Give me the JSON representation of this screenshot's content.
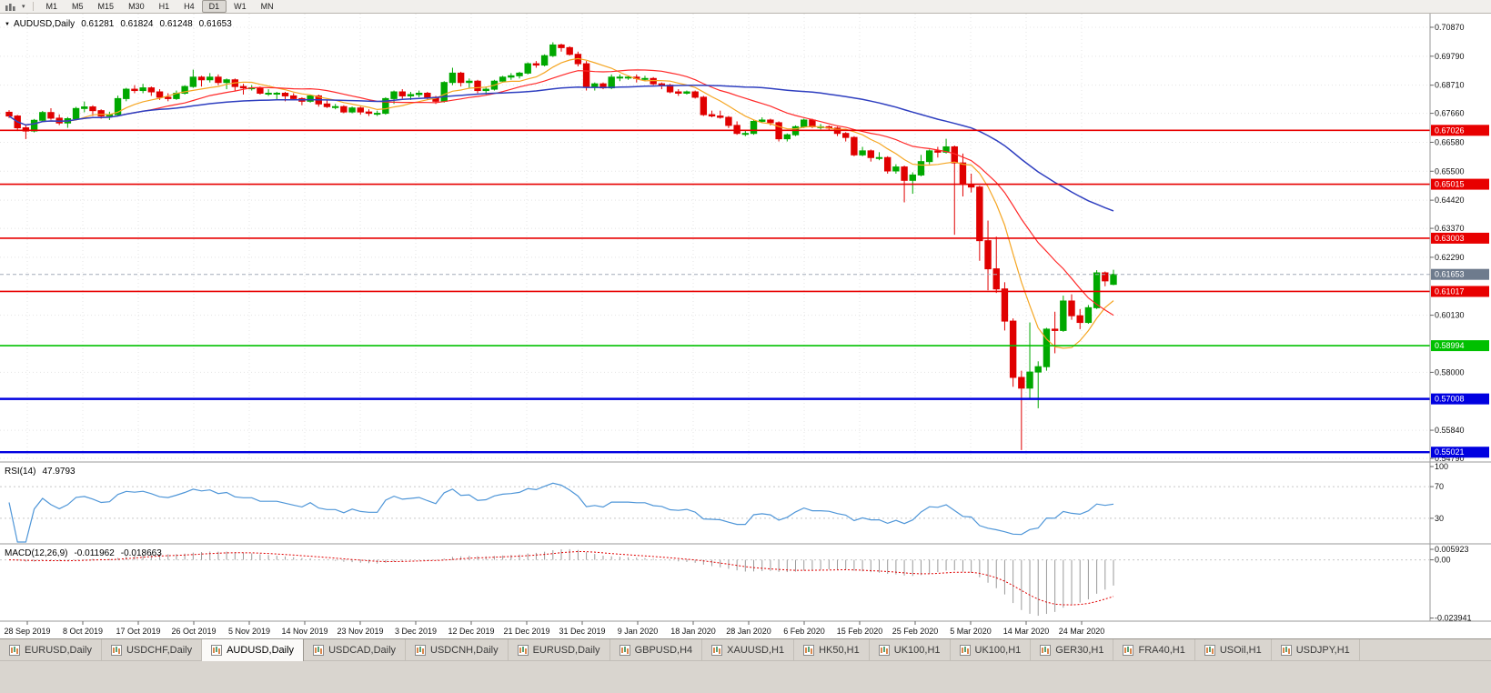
{
  "toolbar": {
    "icons": [
      "candlestick-chart-icon",
      "chart-dropdown-icon"
    ],
    "timeframes": [
      {
        "label": "M1",
        "active": false
      },
      {
        "label": "M5",
        "active": false
      },
      {
        "label": "M15",
        "active": false
      },
      {
        "label": "M30",
        "active": false
      },
      {
        "label": "H1",
        "active": false
      },
      {
        "label": "H4",
        "active": false
      },
      {
        "label": "D1",
        "active": true
      },
      {
        "label": "W1",
        "active": false
      },
      {
        "label": "MN",
        "active": false
      }
    ]
  },
  "chart_data": {
    "type": "candlestick",
    "symbol": "AUDUSD,Daily",
    "ohlc": {
      "open": "0.61281",
      "high": "0.61824",
      "low": "0.61248",
      "close": "0.61653"
    },
    "bid": 0.61653,
    "bid_label": "0.61653",
    "ylim": [
      0.54689,
      0.71378
    ],
    "price_axis_labels": [
      "0.70870",
      "0.69790",
      "0.68710",
      "0.67660",
      "0.66580",
      "0.65500",
      "0.64420",
      "0.63370",
      "0.62290",
      "0.60130",
      "0.58000",
      "0.55840",
      "0.54790"
    ],
    "time_axis_labels": [
      "28 Sep 2019",
      "8 Oct 2019",
      "17 Oct 2019",
      "26 Oct 2019",
      "5 Nov 2019",
      "14 Nov 2019",
      "23 Nov 2019",
      "3 Dec 2019",
      "12 Dec 2019",
      "21 Dec 2019",
      "31 Dec 2019",
      "9 Jan 2020",
      "18 Jan 2020",
      "28 Jan 2020",
      "6 Feb 2020",
      "15 Feb 2020",
      "25 Feb 2020",
      "5 Mar 2020",
      "14 Mar 2020",
      "24 Mar 2020"
    ],
    "hlines": [
      {
        "value": 0.67026,
        "label": "0.67026",
        "color": "#e80000",
        "width": 1.6
      },
      {
        "value": 0.65015,
        "label": "0.65015",
        "color": "#e80000",
        "width": 1.6
      },
      {
        "value": 0.63003,
        "label": "0.63003",
        "color": "#e80000",
        "width": 1.6
      },
      {
        "value": 0.61017,
        "label": "0.61017",
        "color": "#e80000",
        "width": 1.6
      },
      {
        "value": 0.58994,
        "label": "0.58994",
        "color": "#00c000",
        "width": 1.6
      },
      {
        "value": 0.57008,
        "label": "0.57008",
        "color": "#0000e0",
        "width": 2.4
      },
      {
        "value": 0.55021,
        "label": "0.55021",
        "color": "#0000e0",
        "width": 2.4
      }
    ],
    "ma_periods": {
      "fast": 8,
      "mid": 17,
      "slow": 45
    },
    "colors": {
      "bull": "#00a800",
      "bear": "#e00000",
      "ma_fast": "#f5a623",
      "ma_mid": "#ff2a2a",
      "ma_slow": "#2f3fc0",
      "rsi": "#4f96d8",
      "macd_hist": "#9a9a9a",
      "macd_signal": "#e00000",
      "bid_label_bg": "#6e7b8d"
    },
    "indicators": {
      "rsi": {
        "label": "RSI(14)",
        "value": "47.9793",
        "period": 14,
        "axis": [
          "100",
          "70",
          "30"
        ],
        "levels": [
          70,
          30
        ]
      },
      "macd": {
        "label": "MACD(12,26,9)",
        "value": "-0.011962",
        "signal": "-0.018663",
        "fast": 12,
        "slow": 26,
        "signal_period": 9,
        "axis": [
          "0.005923",
          "0.00",
          "-0.023941"
        ],
        "range": [
          -0.0252,
          0.0062
        ]
      }
    },
    "candles": [
      [
        0.677,
        0.6778,
        0.6748,
        0.6756
      ],
      [
        0.6756,
        0.676,
        0.67,
        0.6712
      ],
      [
        0.6712,
        0.6722,
        0.667,
        0.67
      ],
      [
        0.67,
        0.6745,
        0.6695,
        0.674
      ],
      [
        0.674,
        0.6775,
        0.6735,
        0.6769
      ],
      [
        0.6769,
        0.6785,
        0.6742,
        0.6748
      ],
      [
        0.6748,
        0.6762,
        0.6722,
        0.673
      ],
      [
        0.673,
        0.6752,
        0.6712,
        0.6746
      ],
      [
        0.6746,
        0.679,
        0.6741,
        0.6784
      ],
      [
        0.6784,
        0.681,
        0.677,
        0.679
      ],
      [
        0.679,
        0.6796,
        0.6756,
        0.6776
      ],
      [
        0.6776,
        0.6781,
        0.6746,
        0.6756
      ],
      [
        0.6756,
        0.6772,
        0.6741,
        0.6761
      ],
      [
        0.6761,
        0.6832,
        0.6756,
        0.6821
      ],
      [
        0.6821,
        0.6861,
        0.6811,
        0.6856
      ],
      [
        0.6856,
        0.6871,
        0.6841,
        0.6851
      ],
      [
        0.6851,
        0.6876,
        0.6841,
        0.6861
      ],
      [
        0.6861,
        0.6866,
        0.6831,
        0.6846
      ],
      [
        0.6846,
        0.6856,
        0.6816,
        0.6826
      ],
      [
        0.6826,
        0.6841,
        0.6811,
        0.6821
      ],
      [
        0.6821,
        0.6851,
        0.6816,
        0.6841
      ],
      [
        0.6841,
        0.6871,
        0.6836,
        0.6866
      ],
      [
        0.6866,
        0.6929,
        0.6861,
        0.6901
      ],
      [
        0.6901,
        0.6906,
        0.6866,
        0.6891
      ],
      [
        0.6891,
        0.6916,
        0.6881,
        0.6901
      ],
      [
        0.6901,
        0.6911,
        0.6871,
        0.6881
      ],
      [
        0.6881,
        0.6896,
        0.6856,
        0.6891
      ],
      [
        0.6891,
        0.6896,
        0.6851,
        0.6866
      ],
      [
        0.6866,
        0.6876,
        0.6836,
        0.6861
      ],
      [
        0.6861,
        0.6871,
        0.6851,
        0.6861
      ],
      [
        0.6861,
        0.6866,
        0.6836,
        0.6841
      ],
      [
        0.6841,
        0.6856,
        0.6831,
        0.6841
      ],
      [
        0.6841,
        0.6846,
        0.6816,
        0.6841
      ],
      [
        0.6841,
        0.6846,
        0.6811,
        0.6831
      ],
      [
        0.6831,
        0.6841,
        0.6816,
        0.6821
      ],
      [
        0.6821,
        0.6826,
        0.6796,
        0.6811
      ],
      [
        0.6811,
        0.6836,
        0.6806,
        0.6831
      ],
      [
        0.6831,
        0.6836,
        0.6791,
        0.6801
      ],
      [
        0.6801,
        0.6816,
        0.6786,
        0.6791
      ],
      [
        0.6791,
        0.6801,
        0.6781,
        0.6791
      ],
      [
        0.6791,
        0.6796,
        0.6766,
        0.6771
      ],
      [
        0.6771,
        0.6791,
        0.6766,
        0.6786
      ],
      [
        0.6786,
        0.6791,
        0.6761,
        0.6771
      ],
      [
        0.6771,
        0.6781,
        0.6756,
        0.6766
      ],
      [
        0.6766,
        0.6776,
        0.6756,
        0.6766
      ],
      [
        0.6766,
        0.6826,
        0.6761,
        0.6821
      ],
      [
        0.6821,
        0.6851,
        0.6801,
        0.6846
      ],
      [
        0.6846,
        0.6856,
        0.6821,
        0.6831
      ],
      [
        0.6831,
        0.6846,
        0.6816,
        0.6836
      ],
      [
        0.6836,
        0.6851,
        0.6826,
        0.6841
      ],
      [
        0.6841,
        0.6846,
        0.6816,
        0.6826
      ],
      [
        0.6826,
        0.6831,
        0.6801,
        0.6811
      ],
      [
        0.6811,
        0.6886,
        0.6806,
        0.6881
      ],
      [
        0.6881,
        0.6936,
        0.6871,
        0.6916
      ],
      [
        0.6916,
        0.6921,
        0.6866,
        0.6881
      ],
      [
        0.6881,
        0.6896,
        0.6861,
        0.6886
      ],
      [
        0.6886,
        0.6891,
        0.6841,
        0.6851
      ],
      [
        0.6851,
        0.6866,
        0.6836,
        0.6856
      ],
      [
        0.6856,
        0.6891,
        0.6851,
        0.6886
      ],
      [
        0.6886,
        0.6906,
        0.6881,
        0.6901
      ],
      [
        0.6901,
        0.6916,
        0.6891,
        0.6906
      ],
      [
        0.6906,
        0.6921,
        0.6896,
        0.6916
      ],
      [
        0.6916,
        0.6956,
        0.6911,
        0.6951
      ],
      [
        0.6951,
        0.6961,
        0.6936,
        0.6946
      ],
      [
        0.6946,
        0.6986,
        0.6941,
        0.6981
      ],
      [
        0.6981,
        0.7031,
        0.6976,
        0.7021
      ],
      [
        0.7021,
        0.7026,
        0.6996,
        0.7011
      ],
      [
        0.7011,
        0.7016,
        0.6981,
        0.6986
      ],
      [
        0.6986,
        0.6996,
        0.6941,
        0.6951
      ],
      [
        0.6951,
        0.6961,
        0.6851,
        0.6866
      ],
      [
        0.6866,
        0.6881,
        0.6851,
        0.6876
      ],
      [
        0.6876,
        0.6881,
        0.6856,
        0.6861
      ],
      [
        0.6861,
        0.6911,
        0.6856,
        0.6901
      ],
      [
        0.6901,
        0.6911,
        0.6886,
        0.6901
      ],
      [
        0.6901,
        0.6906,
        0.6891,
        0.6901
      ],
      [
        0.6901,
        0.6911,
        0.6881,
        0.6896
      ],
      [
        0.6896,
        0.6906,
        0.6886,
        0.6896
      ],
      [
        0.6896,
        0.6901,
        0.6871,
        0.6876
      ],
      [
        0.6876,
        0.6881,
        0.6856,
        0.6871
      ],
      [
        0.6871,
        0.6876,
        0.6841,
        0.6846
      ],
      [
        0.6846,
        0.6856,
        0.6831,
        0.6841
      ],
      [
        0.6841,
        0.6851,
        0.6836,
        0.6846
      ],
      [
        0.6846,
        0.6851,
        0.6821,
        0.6826
      ],
      [
        0.6826,
        0.6831,
        0.6756,
        0.6761
      ],
      [
        0.6761,
        0.6776,
        0.6751,
        0.6756
      ],
      [
        0.6756,
        0.6776,
        0.6746,
        0.6751
      ],
      [
        0.6751,
        0.6756,
        0.6711,
        0.6721
      ],
      [
        0.6721,
        0.6736,
        0.6686,
        0.6691
      ],
      [
        0.6691,
        0.6701,
        0.6681,
        0.6691
      ],
      [
        0.6691,
        0.6741,
        0.6686,
        0.6736
      ],
      [
        0.6736,
        0.6751,
        0.6731,
        0.6741
      ],
      [
        0.6741,
        0.6746,
        0.6721,
        0.6731
      ],
      [
        0.6731,
        0.6736,
        0.6661,
        0.6671
      ],
      [
        0.6671,
        0.6691,
        0.6661,
        0.6686
      ],
      [
        0.6686,
        0.6721,
        0.6681,
        0.6716
      ],
      [
        0.6716,
        0.6746,
        0.6711,
        0.6741
      ],
      [
        0.6741,
        0.6746,
        0.6711,
        0.6716
      ],
      [
        0.6716,
        0.6726,
        0.6706,
        0.6716
      ],
      [
        0.6716,
        0.6721,
        0.6701,
        0.6711
      ],
      [
        0.6711,
        0.6716,
        0.6681,
        0.6691
      ],
      [
        0.6691,
        0.6696,
        0.6661,
        0.6676
      ],
      [
        0.6676,
        0.6681,
        0.6606,
        0.6611
      ],
      [
        0.6611,
        0.6641,
        0.6606,
        0.6626
      ],
      [
        0.6626,
        0.6631,
        0.6586,
        0.6601
      ],
      [
        0.6601,
        0.6621,
        0.6591,
        0.6601
      ],
      [
        0.6601,
        0.6606,
        0.6541,
        0.6551
      ],
      [
        0.6551,
        0.6576,
        0.6541,
        0.6566
      ],
      [
        0.6566,
        0.6571,
        0.6434,
        0.6516
      ],
      [
        0.6516,
        0.6546,
        0.6466,
        0.6536
      ],
      [
        0.6536,
        0.6611,
        0.6531,
        0.6586
      ],
      [
        0.6586,
        0.6631,
        0.6576,
        0.6626
      ],
      [
        0.6626,
        0.6641,
        0.6601,
        0.6621
      ],
      [
        0.6621,
        0.6671,
        0.6616,
        0.6641
      ],
      [
        0.6641,
        0.6646,
        0.6313,
        0.6581
      ],
      [
        0.6581,
        0.6616,
        0.6456,
        0.6501
      ],
      [
        0.6501,
        0.6541,
        0.6471,
        0.6491
      ],
      [
        0.6491,
        0.6496,
        0.6216,
        0.6291
      ],
      [
        0.6291,
        0.6366,
        0.6106,
        0.6186
      ],
      [
        0.6186,
        0.6306,
        0.6096,
        0.6111
      ],
      [
        0.6111,
        0.6136,
        0.5956,
        0.5991
      ],
      [
        0.5991,
        0.6001,
        0.5746,
        0.5781
      ],
      [
        0.5781,
        0.5806,
        0.551,
        0.5741
      ],
      [
        0.5741,
        0.5986,
        0.5701,
        0.5801
      ],
      [
        0.5801,
        0.5841,
        0.5666,
        0.5821
      ],
      [
        0.5821,
        0.5966,
        0.5806,
        0.5961
      ],
      [
        0.5961,
        0.6026,
        0.5871,
        0.5956
      ],
      [
        0.5956,
        0.6086,
        0.5951,
        0.6066
      ],
      [
        0.6066,
        0.6091,
        0.5996,
        0.6011
      ],
      [
        0.6011,
        0.6036,
        0.5961,
        0.5986
      ],
      [
        0.5986,
        0.6051,
        0.5981,
        0.6041
      ],
      [
        0.6041,
        0.6181,
        0.6036,
        0.6171
      ],
      [
        0.6171,
        0.6176,
        0.6121,
        0.6141
      ],
      [
        0.61281,
        0.61824,
        0.61248,
        0.61653
      ]
    ]
  },
  "tabbar": {
    "tabs": [
      {
        "label": "EURUSD,Daily",
        "active": false
      },
      {
        "label": "USDCHF,Daily",
        "active": false
      },
      {
        "label": "AUDUSD,Daily",
        "active": true
      },
      {
        "label": "USDCAD,Daily",
        "active": false
      },
      {
        "label": "USDCNH,Daily",
        "active": false
      },
      {
        "label": "EURUSD,Daily",
        "active": false
      },
      {
        "label": "GBPUSD,H4",
        "active": false
      },
      {
        "label": "XAUUSD,H1",
        "active": false
      },
      {
        "label": "HK50,H1",
        "active": false
      },
      {
        "label": "UK100,H1",
        "active": false
      },
      {
        "label": "UK100,H1",
        "active": false
      },
      {
        "label": "GER30,H1",
        "active": false
      },
      {
        "label": "FRA40,H1",
        "active": false
      },
      {
        "label": "USOil,H1",
        "active": false
      },
      {
        "label": "USDJPY,H1",
        "active": false
      }
    ]
  }
}
